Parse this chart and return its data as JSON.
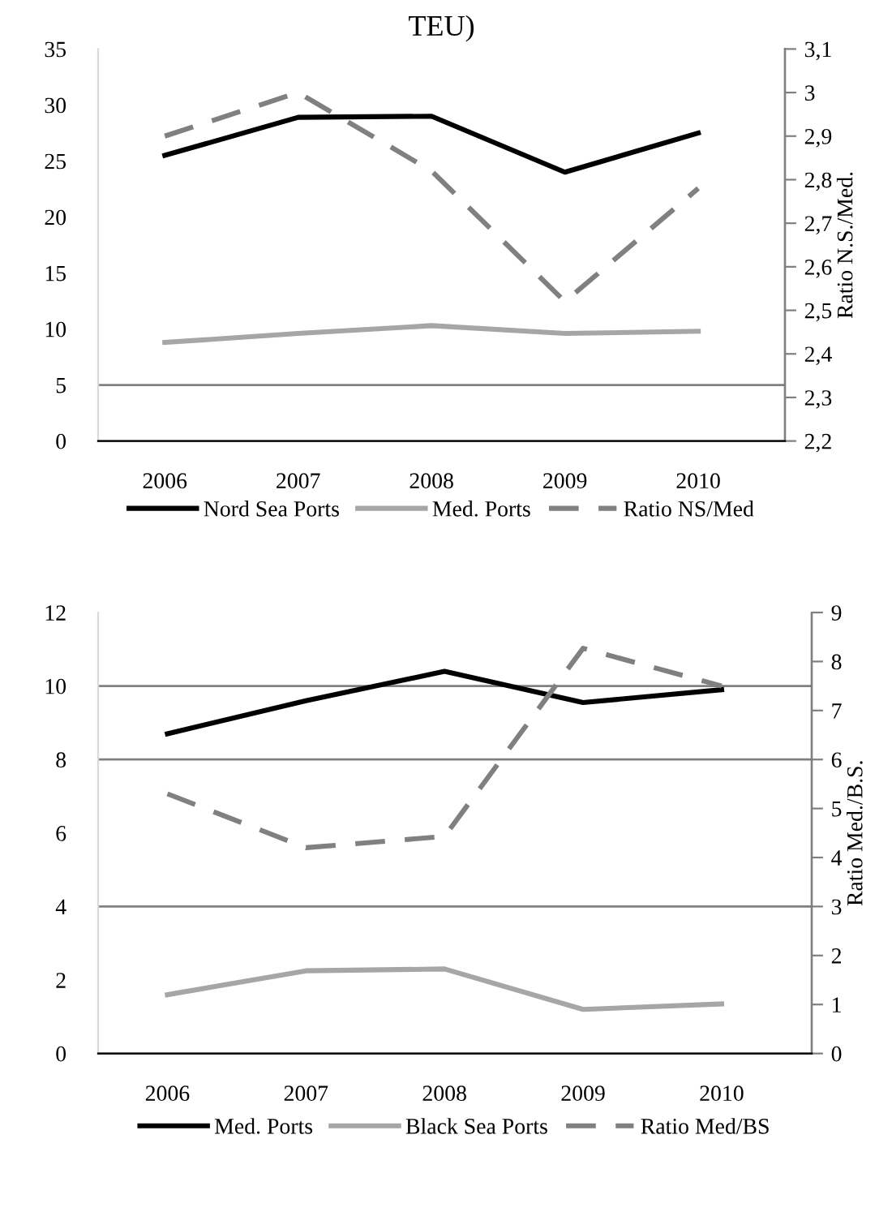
{
  "chart_data": [
    {
      "type": "line",
      "title": "TEU)",
      "categories": [
        "2006",
        "2007",
        "2008",
        "2009",
        "2010"
      ],
      "series": [
        {
          "name": "Nord Sea Ports",
          "color": "#000000",
          "line_style": "solid",
          "values": [
            25.5,
            28.9,
            29.0,
            24.0,
            27.5
          ]
        },
        {
          "name": "Med. Ports",
          "color": "#a6a6a6",
          "line_style": "solid",
          "values": [
            8.8,
            9.6,
            10.3,
            9.6,
            9.8
          ]
        },
        {
          "name": "Ratio NS/Med",
          "color": "#808080",
          "line_style": "dashed",
          "axis": "y2",
          "values": [
            2.9,
            3.0,
            2.82,
            2.52,
            2.78
          ]
        }
      ],
      "ylim": [
        0,
        35
      ],
      "yticks": [
        0,
        5,
        10,
        15,
        20,
        25,
        30,
        35
      ],
      "y2label": "Ratio N.S./Med.",
      "y2lim": [
        2.2,
        3.1
      ],
      "y2ticks": [
        {
          "value": 2.2,
          "label": "2,2"
        },
        {
          "value": 2.3,
          "label": "2,3"
        },
        {
          "value": 2.4,
          "label": "2,4"
        },
        {
          "value": 2.5,
          "label": "2,5"
        },
        {
          "value": 2.6,
          "label": "2,6"
        },
        {
          "value": 2.7,
          "label": "2,7"
        },
        {
          "value": 2.8,
          "label": "2,8"
        },
        {
          "value": 2.9,
          "label": "2,9"
        },
        {
          "value": 3.0,
          "label": "3"
        },
        {
          "value": 3.1,
          "label": "3,1"
        }
      ],
      "ref_lines": [
        {
          "axis": "y",
          "value": 5,
          "color": "#808080"
        }
      ],
      "legend": "bottom",
      "grid": false
    },
    {
      "type": "line",
      "categories": [
        "2006",
        "2007",
        "2008",
        "2009",
        "2010"
      ],
      "series": [
        {
          "name": "Med. Ports",
          "color": "#000000",
          "line_style": "solid",
          "values": [
            8.7,
            9.6,
            10.4,
            9.55,
            9.9
          ]
        },
        {
          "name": "Black Sea Ports",
          "color": "#a6a6a6",
          "line_style": "solid",
          "values": [
            1.6,
            2.25,
            2.3,
            1.2,
            1.35
          ]
        },
        {
          "name": "Ratio Med/BS",
          "color": "#808080",
          "line_style": "dashed",
          "axis": "y2",
          "values": [
            5.3,
            4.2,
            4.43,
            8.27,
            7.5
          ]
        }
      ],
      "ylim": [
        0,
        12
      ],
      "yticks": [
        0,
        2,
        4,
        6,
        8,
        10,
        12
      ],
      "y2label": "Ratio Med./B.S.",
      "y2lim": [
        0,
        9
      ],
      "y2ticks": [
        0,
        1,
        2,
        3,
        4,
        5,
        6,
        7,
        8,
        9
      ],
      "ref_lines": [
        {
          "axis": "y",
          "value": 4,
          "color": "#808080"
        },
        {
          "axis": "y",
          "value": 8,
          "color": "#808080"
        },
        {
          "axis": "y",
          "value": 10,
          "color": "#808080"
        }
      ],
      "legend": "bottom",
      "grid": false
    }
  ]
}
